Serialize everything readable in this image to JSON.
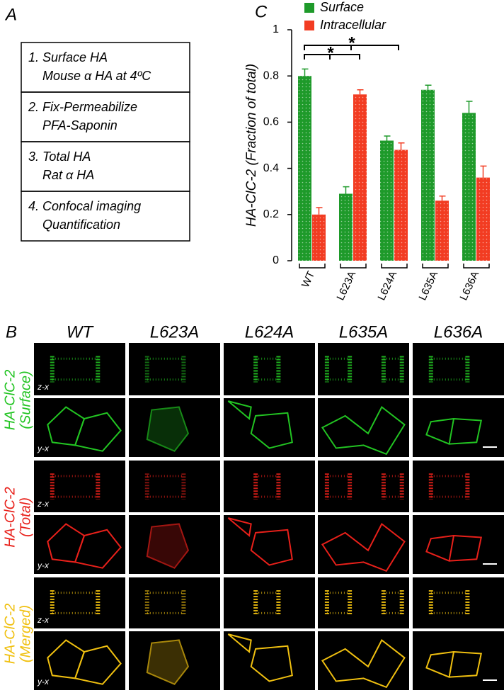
{
  "panel_labels": [
    "A",
    "B",
    "C"
  ],
  "protocol": [
    {
      "title": "1. Surface HA",
      "detail": "Mouse α HA at 4ºC"
    },
    {
      "title": "2. Fix-Permeabilize",
      "detail": "PFA-Saponin"
    },
    {
      "title": "3. Total  HA",
      "detail": "Rat α HA"
    },
    {
      "title": "4. Confocal imaging",
      "detail": "Quantification"
    }
  ],
  "micrographs": {
    "columns": [
      "WT",
      "L623A",
      "L624A",
      "L635A",
      "L636A"
    ],
    "views": [
      "z-x",
      "y-x"
    ],
    "rows": [
      {
        "label": "HA-ClC-2",
        "channel": "(Surface)",
        "color": "#22c422"
      },
      {
        "label": "HA-ClC-2",
        "channel": "(Total)",
        "color": "#e8201a"
      },
      {
        "label": "HA-ClC-2",
        "channel": "(Merged)",
        "color": "#f0c010"
      }
    ]
  },
  "chart_data": {
    "type": "bar",
    "ylabel": "HA-ClC-2 (Fraction of total)",
    "categories": [
      "WT",
      "L623A",
      "L624A",
      "L635A",
      "L636A"
    ],
    "series": [
      {
        "name": "Surface",
        "color": "#1e9a2a",
        "values": [
          0.8,
          0.29,
          0.52,
          0.74,
          0.64
        ],
        "errors": [
          0.03,
          0.03,
          0.02,
          0.02,
          0.05
        ]
      },
      {
        "name": "Intracellular",
        "color": "#f23c22",
        "values": [
          0.2,
          0.72,
          0.48,
          0.26,
          0.36
        ],
        "errors": [
          0.03,
          0.02,
          0.03,
          0.02,
          0.05
        ]
      }
    ],
    "ylim": [
      0,
      1
    ],
    "yticks": [
      0,
      0.2,
      0.4,
      0.6,
      0.8,
      1
    ],
    "significance": [
      "*",
      "*"
    ]
  }
}
